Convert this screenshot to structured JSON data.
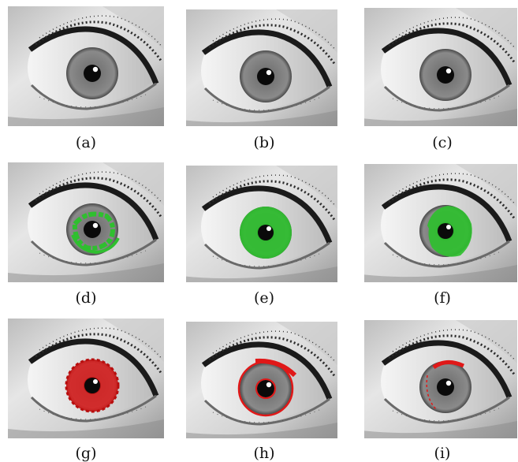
{
  "figure": {
    "captions": [
      "(a)",
      "(b)",
      "(c)",
      "(d)",
      "(e)",
      "(f)",
      "(g)",
      "(h)",
      "(i)"
    ]
  },
  "colors": {
    "segmentation_green": "#2fbf2f",
    "segmentation_red": "#e01818"
  }
}
